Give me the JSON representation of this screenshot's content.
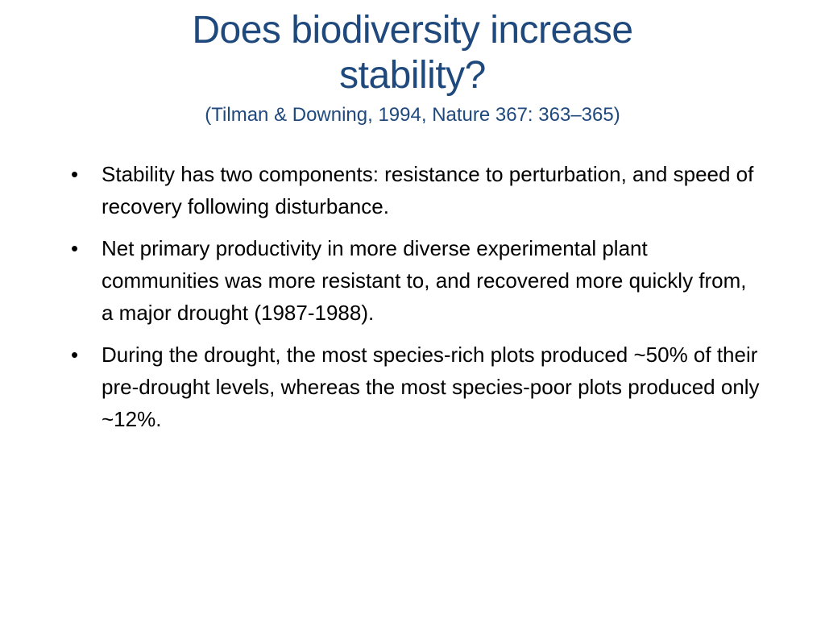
{
  "slide": {
    "title_line1": "Does biodiversity increase",
    "title_line2": "stability?",
    "citation": "(Tilman & Downing, 1994, Nature 367: 363–365)",
    "bullet_char": "•",
    "bullets": [
      "Stability has two components: resistance to perturbation, and speed of recovery following disturbance.",
      "Net primary productivity in more diverse experimental plant communities was more resistant to, and recovered more quickly from, a major drought (1987-1988).",
      "During the drought, the most species-rich plots produced ~50% of their pre-drought levels, whereas the most species-poor plots produced only ~12%."
    ]
  },
  "colors": {
    "title": "#1f497d",
    "body_text": "#000000",
    "background": "#ffffff"
  }
}
